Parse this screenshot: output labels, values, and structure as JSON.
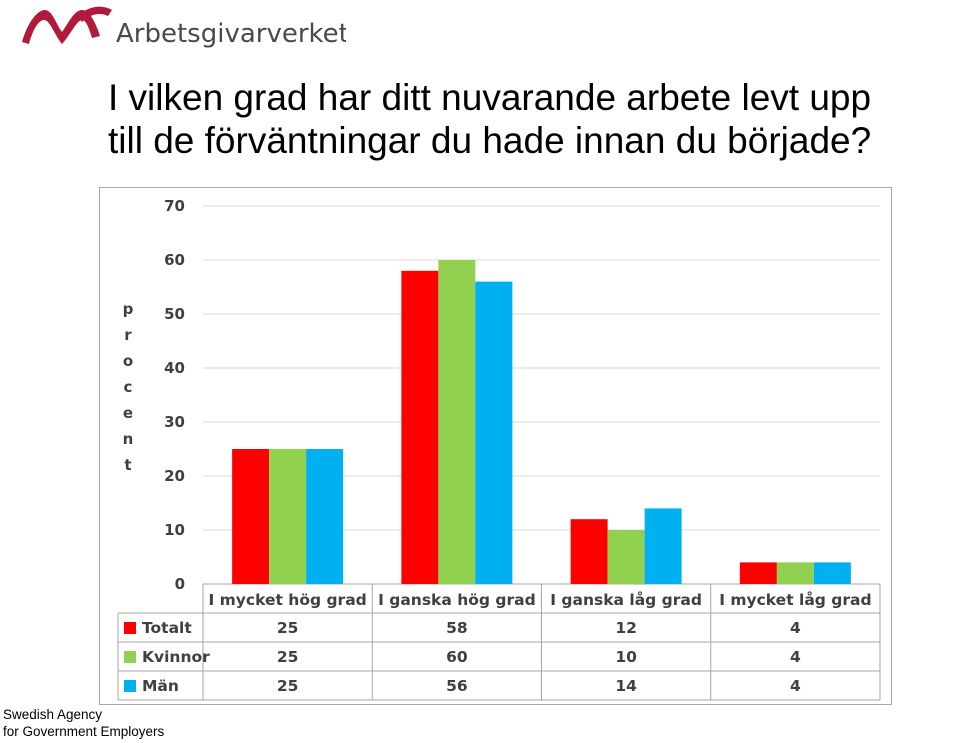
{
  "brand": {
    "name": "Arbetsgivarverket",
    "colors": {
      "mark": "#b11a3b",
      "text": "#4a4a4a"
    }
  },
  "title": {
    "line1": "I vilken grad har ditt nuvarande arbete levt upp",
    "line2": "till de förväntningar du hade innan du började?"
  },
  "footer": {
    "line1": "Swedish Agency",
    "line2": "for Government Employers"
  },
  "chart_data": {
    "type": "bar",
    "ylabel": "Procent",
    "ylim": [
      0,
      70
    ],
    "yticks": [
      0,
      10,
      20,
      30,
      40,
      50,
      60,
      70
    ],
    "grid": true,
    "legend": "data-table",
    "categories": [
      "I mycket hög grad",
      "I ganska hög grad",
      "I ganska låg grad",
      "I mycket låg grad"
    ],
    "series": [
      {
        "name": "Totalt",
        "color": "#ff0000",
        "values": [
          25,
          58,
          12,
          4
        ]
      },
      {
        "name": "Kvinnor",
        "color": "#92d050",
        "values": [
          25,
          60,
          10,
          4
        ]
      },
      {
        "name": "Män",
        "color": "#00b0f0",
        "values": [
          25,
          56,
          14,
          4
        ]
      }
    ]
  }
}
